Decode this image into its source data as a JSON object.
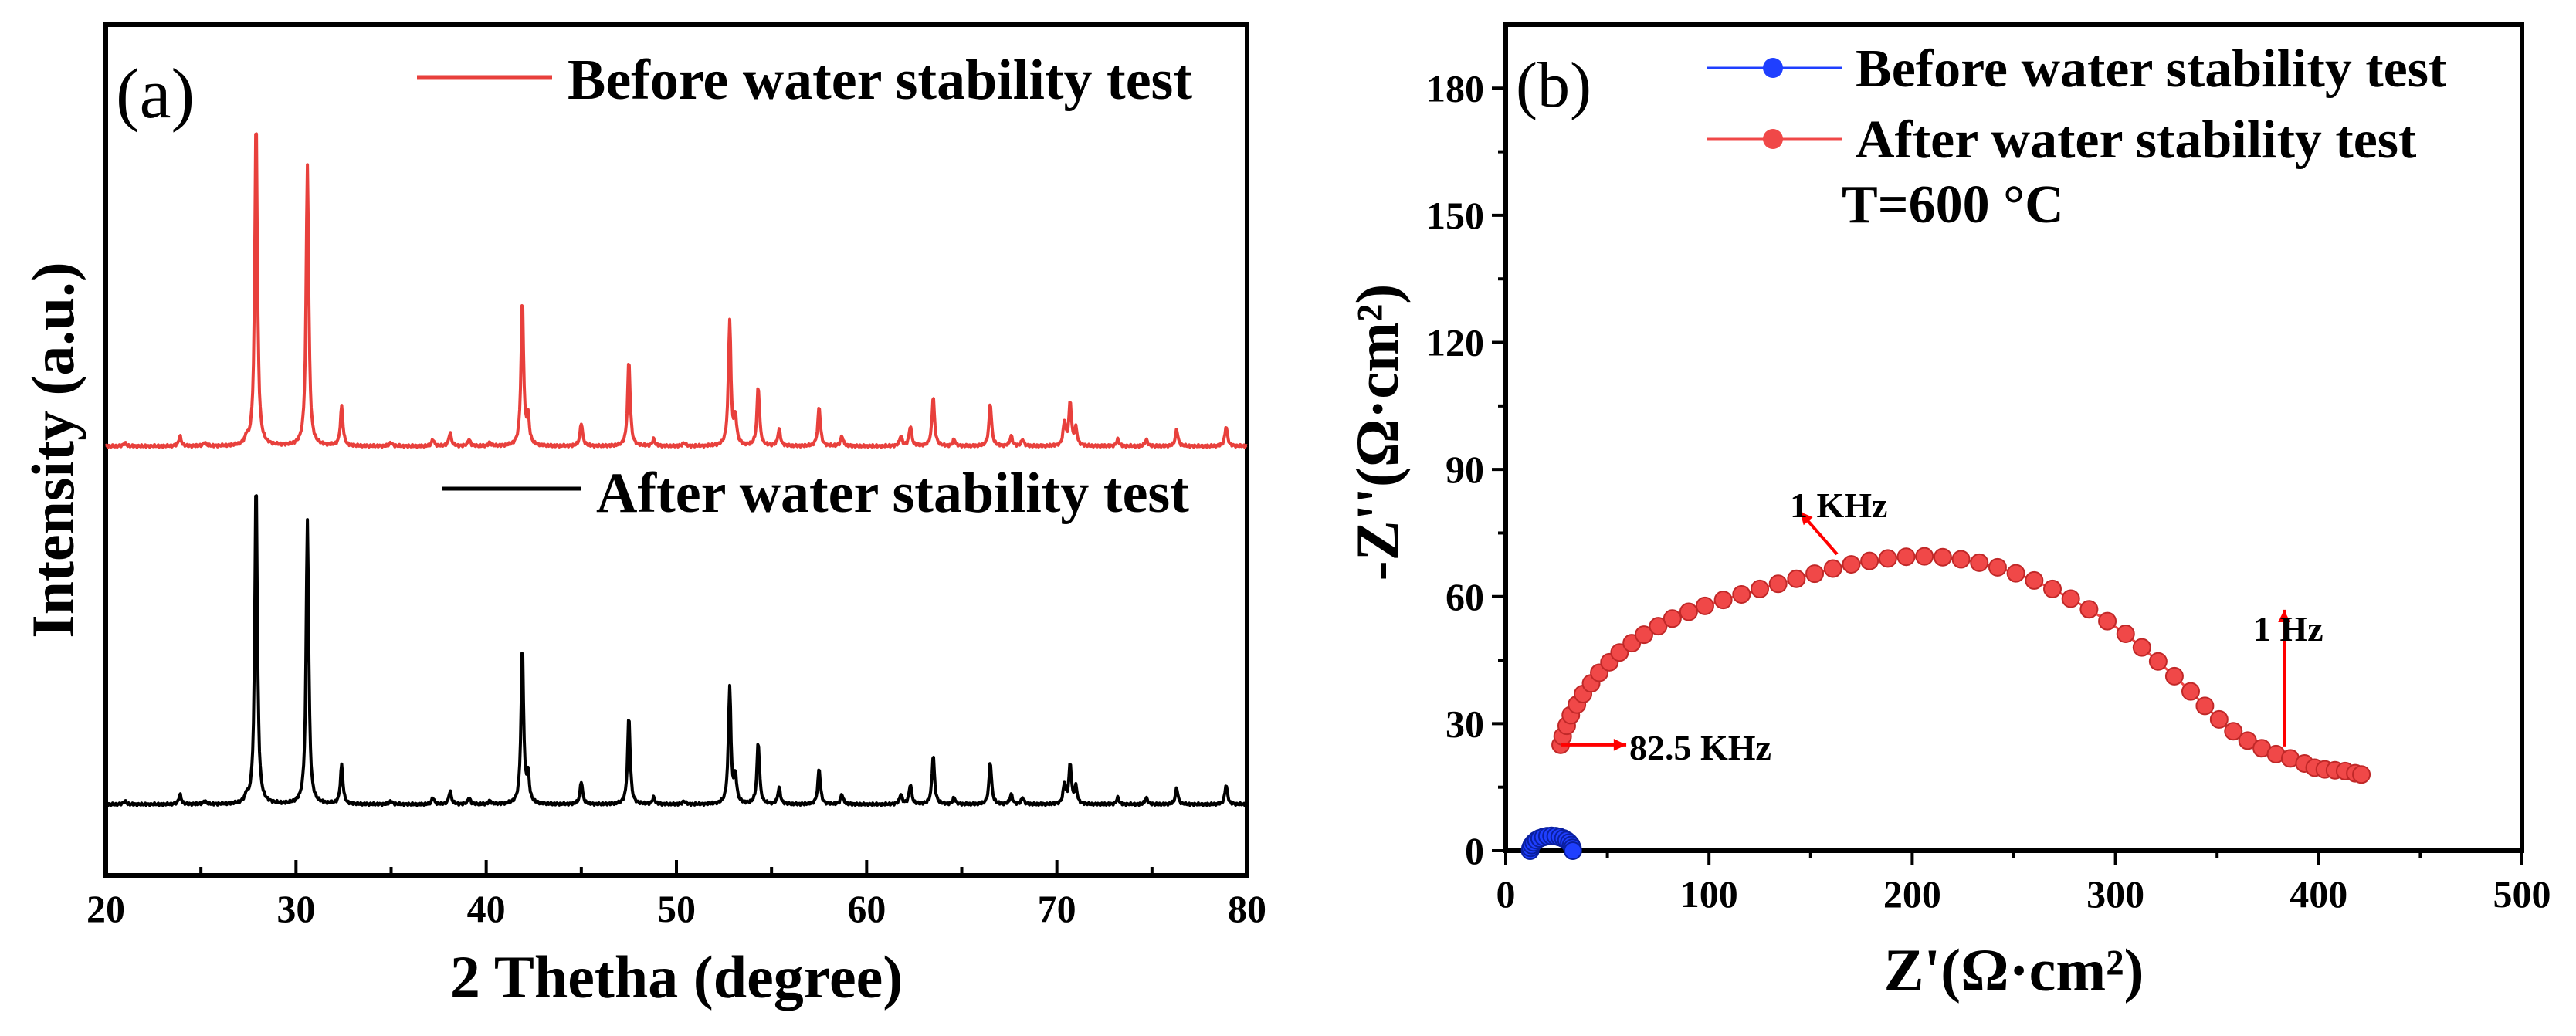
{
  "chart_data": [
    {
      "panel": "(a)",
      "type": "line",
      "title": "",
      "xlabel": "2 Thetha (degree)",
      "ylabel": "Intensity (a.u.)",
      "xlim": [
        20,
        80
      ],
      "xticks": [
        20,
        30,
        40,
        50,
        60,
        70,
        80
      ],
      "yticks_shown": false,
      "series": [
        {
          "name": "Before water stability test",
          "color": "#e8403c",
          "peaks": [
            [
              21.0,
              0.01
            ],
            [
              23.9,
              0.03
            ],
            [
              25.2,
              0.01
            ],
            [
              27.4,
              0.02
            ],
            [
              27.9,
              1.0
            ],
            [
              30.6,
              0.85
            ],
            [
              32.4,
              0.12
            ],
            [
              35.0,
              0.01
            ],
            [
              37.2,
              0.02
            ],
            [
              38.1,
              0.04
            ],
            [
              39.1,
              0.02
            ],
            [
              40.2,
              0.01
            ],
            [
              41.9,
              0.44
            ],
            [
              42.2,
              0.08
            ],
            [
              45.0,
              0.07
            ],
            [
              47.5,
              0.26
            ],
            [
              48.8,
              0.02
            ],
            [
              50.4,
              0.01
            ],
            [
              52.8,
              0.38
            ],
            [
              53.1,
              0.08
            ],
            [
              54.3,
              0.18
            ],
            [
              55.4,
              0.05
            ],
            [
              57.5,
              0.12
            ],
            [
              58.7,
              0.03
            ],
            [
              61.8,
              0.03
            ],
            [
              62.3,
              0.06
            ],
            [
              63.5,
              0.15
            ],
            [
              64.6,
              0.02
            ],
            [
              66.5,
              0.13
            ],
            [
              67.6,
              0.03
            ],
            [
              68.2,
              0.02
            ],
            [
              70.4,
              0.07
            ],
            [
              70.7,
              0.13
            ],
            [
              71.0,
              0.05
            ],
            [
              73.2,
              0.02
            ],
            [
              74.7,
              0.02
            ],
            [
              76.3,
              0.05
            ],
            [
              78.9,
              0.06
            ]
          ]
        },
        {
          "name": "After water stability test",
          "color": "#000000",
          "peaks": [
            [
              21.0,
              0.01
            ],
            [
              23.9,
              0.03
            ],
            [
              25.2,
              0.01
            ],
            [
              27.4,
              0.02
            ],
            [
              27.9,
              1.0
            ],
            [
              30.6,
              0.87
            ],
            [
              32.4,
              0.12
            ],
            [
              35.0,
              0.01
            ],
            [
              37.2,
              0.02
            ],
            [
              38.1,
              0.04
            ],
            [
              39.1,
              0.02
            ],
            [
              40.2,
              0.01
            ],
            [
              41.9,
              0.48
            ],
            [
              42.2,
              0.08
            ],
            [
              45.0,
              0.07
            ],
            [
              47.5,
              0.27
            ],
            [
              48.8,
              0.02
            ],
            [
              50.4,
              0.01
            ],
            [
              52.8,
              0.36
            ],
            [
              53.1,
              0.08
            ],
            [
              54.3,
              0.19
            ],
            [
              55.4,
              0.05
            ],
            [
              57.5,
              0.11
            ],
            [
              58.7,
              0.03
            ],
            [
              61.8,
              0.03
            ],
            [
              62.3,
              0.06
            ],
            [
              63.5,
              0.15
            ],
            [
              64.6,
              0.02
            ],
            [
              66.5,
              0.13
            ],
            [
              67.6,
              0.03
            ],
            [
              68.2,
              0.02
            ],
            [
              70.4,
              0.06
            ],
            [
              70.7,
              0.12
            ],
            [
              71.0,
              0.05
            ],
            [
              73.2,
              0.02
            ],
            [
              74.7,
              0.02
            ],
            [
              76.3,
              0.05
            ],
            [
              78.9,
              0.06
            ]
          ]
        }
      ]
    },
    {
      "panel": "(b)",
      "type": "scatter",
      "title": "",
      "xlabel": "Z'(Ω·cm²)",
      "ylabel": "-Z''(Ω·cm²)",
      "xlim": [
        0,
        500
      ],
      "ylim": [
        0,
        195
      ],
      "xticks": [
        0,
        100,
        200,
        300,
        400,
        500
      ],
      "yticks": [
        0,
        30,
        60,
        90,
        120,
        150,
        180
      ],
      "annotation_temperature": "T=600 °C",
      "annotations": [
        "1 KHz",
        "1 Hz",
        "82.5 KHz"
      ],
      "annotation_points": [
        [
          163,
          70
        ],
        [
          383,
          25
        ],
        [
          27,
          25
        ]
      ],
      "series": [
        {
          "name": "Before water stability test",
          "color": "#1f3fff",
          "arc": {
            "x_start": 12,
            "x_end": 33,
            "max_y": 3.5
          }
        },
        {
          "name": "After water stability test",
          "color": "#f04848",
          "points": [
            [
              27,
              25
            ],
            [
              28,
              27
            ],
            [
              30,
              29.5
            ],
            [
              32,
              32
            ],
            [
              35,
              34.5
            ],
            [
              38,
              37
            ],
            [
              42,
              39.5
            ],
            [
              46,
              42
            ],
            [
              51,
              44.5
            ],
            [
              56,
              46.8
            ],
            [
              62,
              49
            ],
            [
              68,
              51
            ],
            [
              75,
              53
            ],
            [
              82,
              54.8
            ],
            [
              90,
              56.4
            ],
            [
              98,
              57.8
            ],
            [
              107,
              59.2
            ],
            [
              116,
              60.5
            ],
            [
              125,
              61.8
            ],
            [
              134,
              63
            ],
            [
              143,
              64.2
            ],
            [
              152,
              65.4
            ],
            [
              161,
              66.6
            ],
            [
              170,
              67.6
            ],
            [
              179,
              68.4
            ],
            [
              188,
              69
            ],
            [
              197,
              69.4
            ],
            [
              206,
              69.5
            ],
            [
              215,
              69.3
            ],
            [
              224,
              68.8
            ],
            [
              233,
              68
            ],
            [
              242,
              66.9
            ],
            [
              251,
              65.5
            ],
            [
              260,
              63.8
            ],
            [
              269,
              61.8
            ],
            [
              278,
              59.5
            ],
            [
              287,
              57
            ],
            [
              296,
              54.2
            ],
            [
              305,
              51.2
            ],
            [
              313,
              48
            ],
            [
              321,
              44.7
            ],
            [
              329,
              41.2
            ],
            [
              337,
              37.6
            ],
            [
              344,
              34.2
            ],
            [
              351,
              31
            ],
            [
              358,
              28.2
            ],
            [
              365,
              26
            ],
            [
              372,
              24.2
            ],
            [
              379,
              22.8
            ],
            [
              386,
              21.8
            ],
            [
              393,
              20.6
            ],
            [
              398,
              19.6
            ],
            [
              403,
              19.2
            ],
            [
              408,
              19
            ],
            [
              413,
              18.8
            ],
            [
              418,
              18.3
            ],
            [
              421,
              18
            ]
          ]
        }
      ]
    }
  ]
}
